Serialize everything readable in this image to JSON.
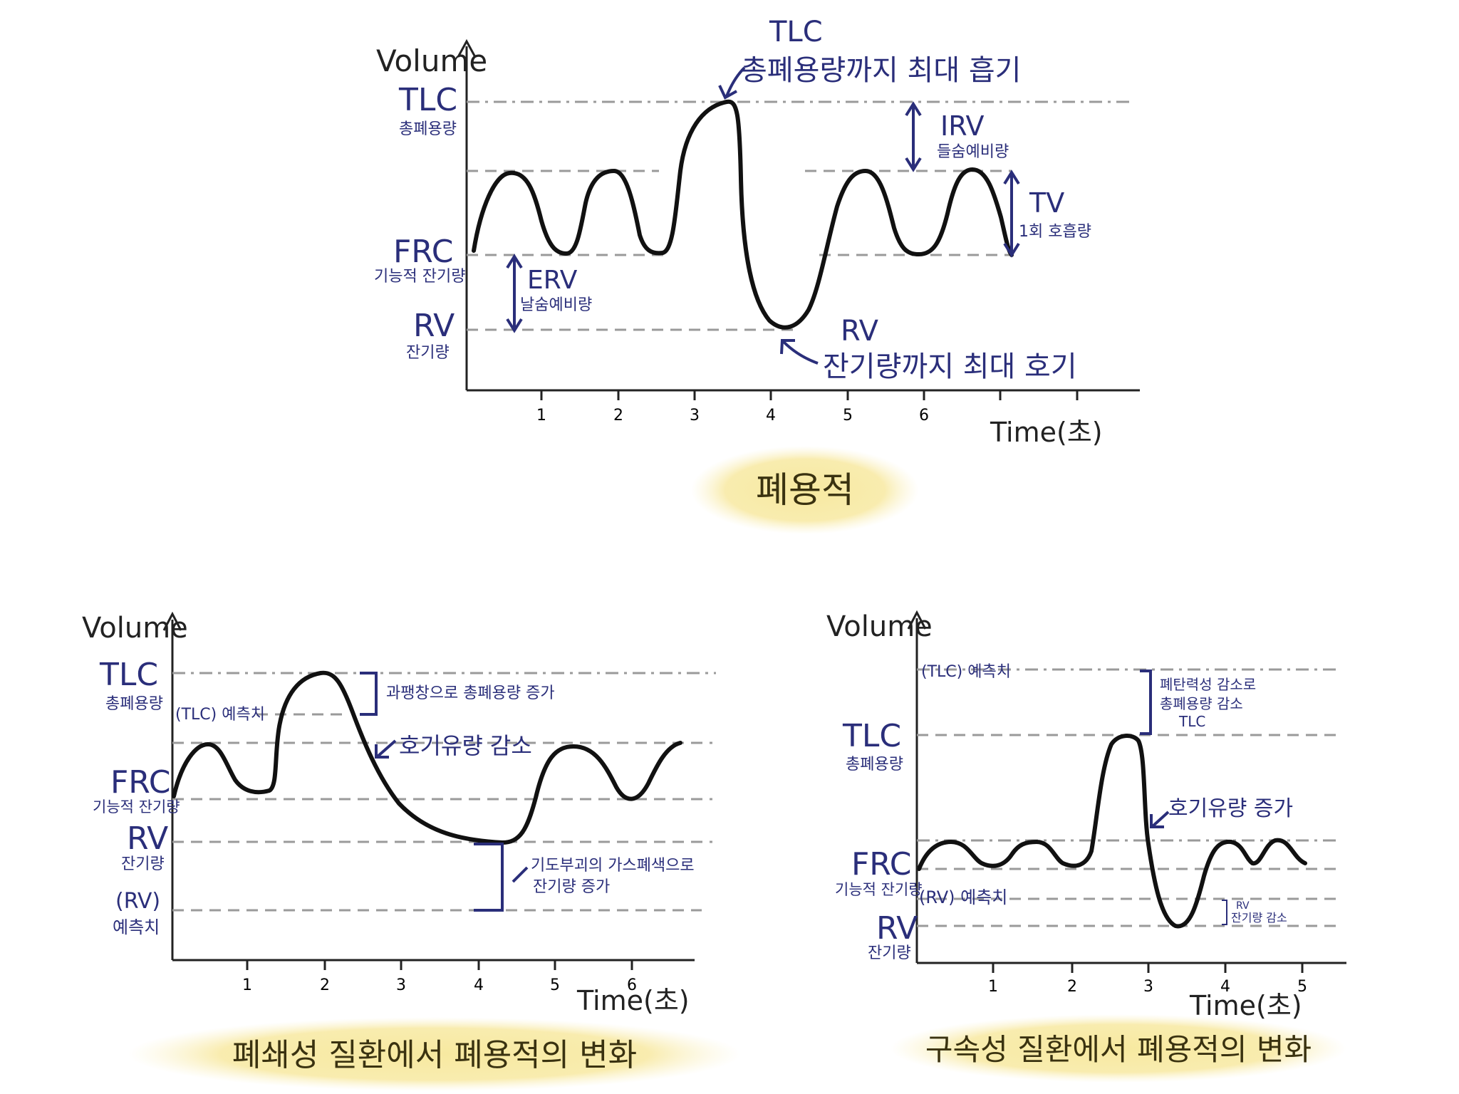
{
  "top_chart": {
    "caption": "폐용적",
    "y_axis_label": "Volume",
    "x_axis_label": "Time(초)",
    "x_ticks": [
      "1",
      "2",
      "3",
      "4",
      "5",
      "6"
    ],
    "levels": {
      "tlc": {
        "label": "TLC",
        "sub": "총폐용량"
      },
      "frc": {
        "label": "FRC",
        "sub": "기능적 잔기량"
      },
      "rv": {
        "label": "RV",
        "sub": "잔기량"
      }
    },
    "annotations": {
      "tlc_top": {
        "title": "TLC",
        "text": "총폐용량까지 최대 흡기"
      },
      "rv_bottom": {
        "title": "RV",
        "text": "잔기량까지 최대 호기"
      },
      "irv": {
        "label": "IRV",
        "sub": "들숨예비량"
      },
      "tv": {
        "label": "TV",
        "sub": "1회 호흡량"
      },
      "erv": {
        "label": "ERV",
        "sub": "날숨예비량"
      }
    }
  },
  "restrictive_chart": {
    "caption": "폐쇄성 질환에서 폐용적의 변화",
    "y_axis_label": "Volume",
    "x_axis_label": "Time(초)",
    "x_ticks": [
      "1",
      "2",
      "3",
      "4",
      "5",
      "6"
    ],
    "levels": {
      "tlc": {
        "label": "TLC",
        "sub": "총폐용량"
      },
      "frc": {
        "label": "FRC",
        "sub": "기능적 잔기량"
      },
      "rv": {
        "label": "RV",
        "sub": "잔기량"
      },
      "rv_pred": {
        "label": "(RV)",
        "sub": "예측치"
      }
    },
    "annotations": {
      "tlc_pred": "(TLC) 예측치",
      "tlc_increase": "과팽창으로 총폐용량 증가",
      "flow_decrease": "호기유량 감소",
      "rv_increase_1": "기도부괴의 가스폐색으로",
      "rv_increase_2": "잔기량 증가"
    }
  },
  "obstructive_chart": {
    "caption": "구속성 질환에서 폐용적의 변화",
    "y_axis_label": "Volume",
    "x_axis_label": "Time(초)",
    "x_ticks": [
      "1",
      "2",
      "3",
      "4",
      "5"
    ],
    "levels": {
      "tlc": {
        "label": "TLC",
        "sub": "총폐용량"
      },
      "frc": {
        "label": "FRC",
        "sub": "기능적 잔기량"
      },
      "rv": {
        "label": "RV",
        "sub": "잔기량"
      }
    },
    "annotations": {
      "tlc_pred": "(TLC) 예측치",
      "tlc_decrease_1": "폐탄력성 감소로",
      "tlc_decrease_2": "총폐용량 감소",
      "tlc_decrease_3": "TLC",
      "flow_increase": "호기유량 증가",
      "rv_pred": "(RV) 예측치",
      "rv_decrease_1": "RV",
      "rv_decrease_2": "잔기량 감소"
    }
  },
  "colors": {
    "label_navy": "#2a2e7a",
    "caption_highlight": "#f7e9a0",
    "reference_line": "#9a9a9a",
    "curve": "#111111"
  }
}
